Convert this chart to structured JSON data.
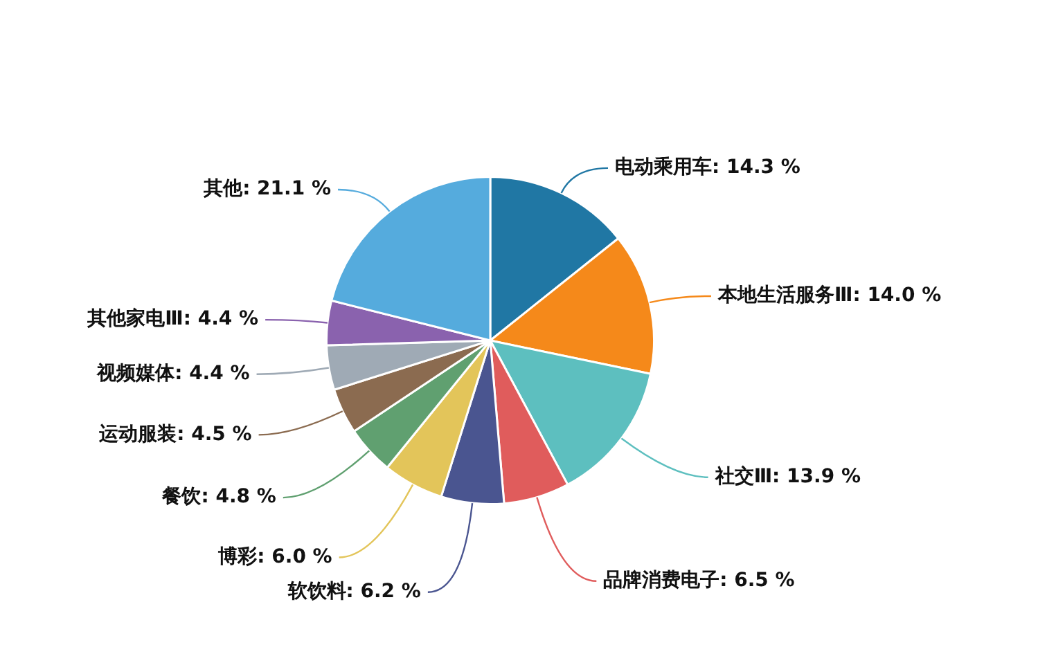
{
  "chart_data": {
    "type": "pie",
    "categories": [
      "电动乘用车",
      "本地生活服务Ⅲ",
      "社交Ⅲ",
      "品牌消费电子",
      "软饮料",
      "博彩",
      "餐饮",
      "运动服装",
      "视频媒体",
      "其他家电Ⅲ",
      "其他"
    ],
    "values": [
      14.3,
      14.0,
      13.9,
      6.5,
      6.2,
      6.0,
      4.8,
      4.5,
      4.4,
      4.4,
      21.1
    ],
    "value_labels": [
      "14.3 %",
      "14.0 %",
      "13.9 %",
      "6.5 %",
      "6.2 %",
      "6.0 %",
      "4.8 %",
      "4.5 %",
      "4.4 %",
      "4.4 %",
      "21.1 %"
    ],
    "colors": [
      "#2077a4",
      "#f5891a",
      "#5dbfbf",
      "#e05c5c",
      "#4a5590",
      "#e3c55a",
      "#60a070",
      "#8b6b50",
      "#9faab5",
      "#8a62ae",
      "#55abdd"
    ],
    "legend": false
  }
}
